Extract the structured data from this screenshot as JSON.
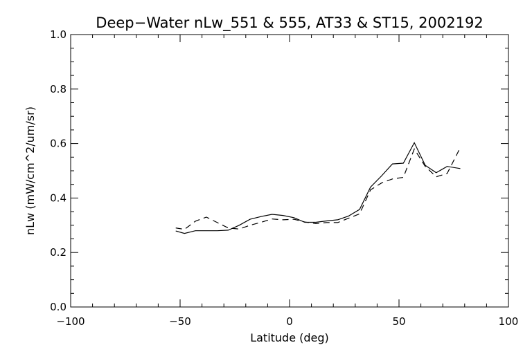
{
  "chart_data": {
    "type": "line",
    "title": "Deep−Water nLw_551 & 555, AT33 & ST15, 2002192",
    "xlabel": "Latitude (deg)",
    "ylabel": "nLw (mW/cm^2/um/sr)",
    "xlim": [
      -100,
      100
    ],
    "ylim": [
      0.0,
      1.0
    ],
    "x_ticks": [
      -100,
      -50,
      0,
      50,
      100
    ],
    "x_tick_labels": [
      "−100",
      "−50",
      "0",
      "50",
      "100"
    ],
    "y_ticks": [
      0.0,
      0.2,
      0.4,
      0.6,
      0.8,
      1.0
    ],
    "y_tick_labels": [
      "0.0",
      "0.2",
      "0.4",
      "0.6",
      "0.8",
      "1.0"
    ],
    "grid": false,
    "series": [
      {
        "style": "solid",
        "color": "#000000",
        "x": [
          -52,
          -48,
          -43,
          -38,
          -33,
          -28,
          -23,
          -18,
          -13,
          -8,
          -3,
          2,
          7,
          12,
          17,
          22,
          27,
          32,
          37,
          42,
          47,
          52,
          57,
          62,
          67,
          72,
          78
        ],
        "y": [
          0.279,
          0.27,
          0.28,
          0.28,
          0.28,
          0.282,
          0.3,
          0.322,
          0.332,
          0.34,
          0.336,
          0.328,
          0.311,
          0.311,
          0.316,
          0.32,
          0.334,
          0.358,
          0.44,
          0.481,
          0.525,
          0.528,
          0.603,
          0.52,
          0.493,
          0.516,
          0.508
        ]
      },
      {
        "style": "dashed",
        "color": "#000000",
        "x": [
          -52,
          -48,
          -43,
          -38,
          -33,
          -28,
          -23,
          -18,
          -13,
          -8,
          -3,
          2,
          7,
          12,
          17,
          22,
          27,
          32,
          37,
          42,
          47,
          52,
          57,
          62,
          67,
          72,
          78
        ],
        "y": [
          0.29,
          0.285,
          0.315,
          0.33,
          0.31,
          0.29,
          0.286,
          0.3,
          0.311,
          0.323,
          0.32,
          0.322,
          0.312,
          0.306,
          0.31,
          0.31,
          0.326,
          0.342,
          0.43,
          0.455,
          0.47,
          0.476,
          0.58,
          0.516,
          0.478,
          0.49,
          0.585
        ]
      }
    ]
  }
}
